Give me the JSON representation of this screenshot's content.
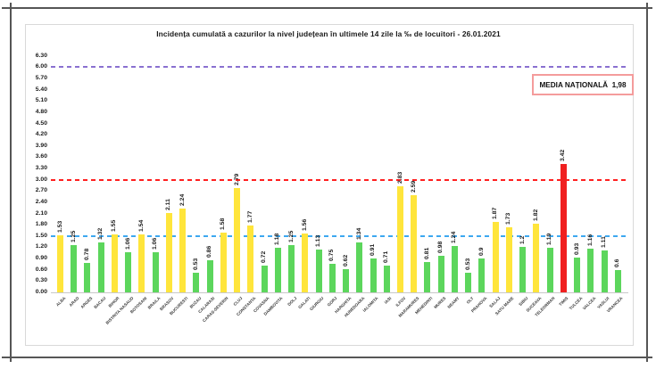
{
  "chart_data": {
    "type": "bar",
    "title": "Incidența cumulată a cazurilor la nivel județean în ultimele 14 zile la ‰ de locuitori - 26.01.2021",
    "annotation_box": "MEDIA NAȚIONALĂ  1,98",
    "categories": [
      "ALBA",
      "ARAD",
      "ARGES",
      "BACAU",
      "BIHOR",
      "BISTRITA NASAUD",
      "BOTOSANI",
      "BRAILA",
      "BRASOV",
      "BUCURESTI",
      "BUZAU",
      "CALARASI",
      "CARAS-SEVERIN",
      "CLUJ",
      "CONSTANTA",
      "COVASNA",
      "DAMBOVITA",
      "DOLJ",
      "GALATI",
      "GIURGIU",
      "GORJ",
      "HARGHITA",
      "HUNEDOARA",
      "IALOMITA",
      "IASI",
      "ILFOV",
      "MARAMURES",
      "MEHEDINTI",
      "MURES",
      "NEAMT",
      "OLT",
      "PRAHOVA",
      "SALAJ",
      "SATU MARE",
      "SIBIU",
      "SUCEAVA",
      "TELEORMAN",
      "TIMIS",
      "TULCEA",
      "VALCEA",
      "VASLUI",
      "VRANCEA"
    ],
    "values": [
      1.53,
      1.25,
      0.78,
      1.32,
      1.55,
      1.06,
      1.54,
      1.06,
      2.11,
      2.24,
      0.53,
      0.86,
      1.58,
      2.79,
      1.77,
      0.72,
      1.18,
      1.25,
      1.56,
      1.13,
      0.75,
      0.62,
      1.34,
      0.91,
      0.71,
      2.83,
      2.59,
      0.81,
      0.98,
      1.24,
      0.53,
      0.9,
      1.87,
      1.73,
      1.2,
      1.82,
      1.19,
      3.42,
      0.93,
      1.16,
      1.11,
      0.6
    ],
    "value_labels": [
      "1.53",
      "1.25",
      "0.78",
      "1.32",
      "1.55",
      "1.06",
      "1.54",
      "1.06",
      "2.11",
      "2.24",
      "0.53",
      "0.86",
      "1.58",
      "2.79",
      "1.77",
      "0.72",
      "1.18",
      "1.25",
      "1.56",
      "1.13",
      "0.75",
      "0.62",
      "1.34",
      "0.91",
      "0.71",
      "2.83",
      "2.59",
      "0.81",
      "0.98",
      "1.24",
      "0.53",
      "0.9",
      "1.87",
      "1.73",
      "1.2",
      "1.82",
      "1.19",
      "3.42",
      "0.93",
      "1.16",
      "1.11",
      "0.6"
    ],
    "y_ticks": [
      "0.00",
      "0.30",
      "0.60",
      "0.90",
      "1.20",
      "1.50",
      "1.80",
      "2.10",
      "2.40",
      "2.70",
      "3.00",
      "3.30",
      "3.60",
      "3.90",
      "4.20",
      "4.50",
      "4.80",
      "5.10",
      "5.40",
      "5.70",
      "6.00",
      "6.30"
    ],
    "ylim": [
      0,
      6.3
    ],
    "grid": false,
    "legend_position": "none",
    "reference_lines": [
      {
        "name": "threshold-1-50",
        "value": 1.5,
        "color": "#3da8f0"
      },
      {
        "name": "threshold-3-00",
        "value": 3.0,
        "color": "#ff1f1f"
      },
      {
        "name": "threshold-6-00",
        "value": 6.0,
        "color": "#8a70d0"
      }
    ],
    "bar_colors": {
      "green": "#5cd65c",
      "yellow": "#ffe53b",
      "red": "#f02020"
    },
    "color_thresholds": {
      "yellow_min": 1.5,
      "red_min": 3.0
    }
  }
}
